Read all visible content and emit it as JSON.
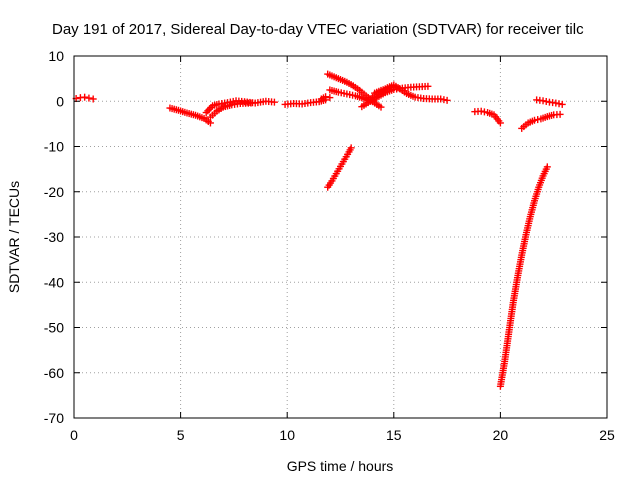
{
  "chart_data": {
    "type": "scatter",
    "title": "Day 191 of 2017, Sidereal Day-to-day VTEC variation (SDTVAR) for receiver tilc",
    "xlabel": "GPS time / hours",
    "ylabel": "SDTVAR / TECUs",
    "xlim": [
      0,
      25
    ],
    "ylim": [
      -70,
      10
    ],
    "xticks": [
      0,
      5,
      10,
      15,
      20,
      25
    ],
    "yticks": [
      10,
      0,
      -10,
      -20,
      -30,
      -40,
      -50,
      -60,
      -70
    ],
    "grid": true,
    "marker": "+",
    "color": "#ff0000",
    "segments": [
      {
        "x": [
          0.1,
          0.3,
          0.5,
          0.7,
          0.9
        ],
        "y": [
          0.6,
          0.8,
          0.9,
          0.7,
          0.5
        ]
      },
      {
        "x": [
          4.5,
          4.9,
          5.3,
          5.7,
          6.1,
          6.4
        ],
        "y": [
          -1.5,
          -2.0,
          -2.6,
          -3.1,
          -3.8,
          -4.8
        ]
      },
      {
        "x": [
          6.2,
          6.5,
          6.8,
          7.2,
          7.6,
          8.0,
          8.5,
          9.0,
          9.4
        ],
        "y": [
          -2.5,
          -1.0,
          -0.6,
          -0.3,
          0.1,
          -0.1,
          -0.4,
          0.0,
          -0.2
        ]
      },
      {
        "x": [
          6.4,
          6.7,
          7.0,
          7.4,
          7.8,
          8.3
        ],
        "y": [
          -3.5,
          -2.2,
          -1.3,
          -0.8,
          -0.5,
          -0.4
        ]
      },
      {
        "x": [
          9.9,
          10.3,
          10.7,
          11.1,
          11.5,
          11.8
        ],
        "y": [
          -0.7,
          -0.5,
          -0.6,
          -0.3,
          -0.1,
          0.3
        ]
      },
      {
        "x": [
          11.6,
          11.8,
          12.0
        ],
        "y": [
          0.5,
          1.0,
          0.8
        ]
      },
      {
        "x": [
          11.9,
          12.2,
          12.5,
          12.8,
          13.1,
          13.4,
          13.7,
          14.0
        ],
        "y": [
          6.0,
          5.4,
          4.8,
          4.2,
          3.4,
          2.4,
          1.2,
          0.1
        ]
      },
      {
        "x": [
          12.0,
          12.4,
          12.8,
          13.2,
          13.6,
          14.0,
          14.4
        ],
        "y": [
          2.5,
          2.0,
          1.6,
          1.2,
          0.6,
          -0.1,
          -1.3
        ]
      },
      {
        "x": [
          13.5,
          13.8,
          14.2,
          14.6,
          15.0,
          15.4,
          15.8,
          16.2,
          16.6
        ],
        "y": [
          -1.2,
          -0.3,
          0.8,
          1.9,
          2.6,
          2.9,
          3.1,
          3.2,
          3.3
        ]
      },
      {
        "x": [
          13.8,
          14.1,
          14.4,
          14.7,
          15.0,
          15.3,
          15.6,
          16.0,
          16.4,
          16.8,
          17.2,
          17.5
        ],
        "y": [
          0.2,
          1.2,
          2.2,
          3.0,
          3.6,
          2.7,
          1.7,
          0.9,
          0.6,
          0.5,
          0.5,
          0.2
        ]
      },
      {
        "x": [
          14.1,
          14.4,
          14.7,
          15.0
        ],
        "y": [
          1.8,
          2.4,
          2.8,
          3.1
        ]
      },
      {
        "x": [
          11.9,
          12.1,
          12.3,
          12.5,
          12.7,
          12.9,
          13.0
        ],
        "y": [
          -19.0,
          -17.6,
          -16.0,
          -14.4,
          -12.8,
          -11.2,
          -10.3
        ]
      },
      {
        "x": [
          18.8,
          19.1,
          19.4,
          19.7,
          20.0
        ],
        "y": [
          -2.3,
          -2.2,
          -2.5,
          -3.0,
          -4.8
        ]
      },
      {
        "x": [
          20.0,
          20.2,
          20.4,
          20.6,
          20.8,
          21.0,
          21.2,
          21.4,
          21.6,
          21.8,
          22.0,
          22.2
        ],
        "y": [
          -63.0,
          -57.5,
          -51.0,
          -44.5,
          -39.0,
          -34.0,
          -29.5,
          -25.5,
          -22.0,
          -19.0,
          -16.5,
          -14.5
        ]
      },
      {
        "x": [
          21.0,
          21.3,
          21.6,
          21.9,
          22.2,
          22.5,
          22.8
        ],
        "y": [
          -6.0,
          -4.8,
          -4.2,
          -3.9,
          -3.4,
          -3.0,
          -2.9
        ]
      },
      {
        "x": [
          21.7,
          22.0,
          22.3,
          22.6,
          22.9
        ],
        "y": [
          0.3,
          0.1,
          -0.2,
          -0.4,
          -0.7
        ]
      }
    ]
  }
}
